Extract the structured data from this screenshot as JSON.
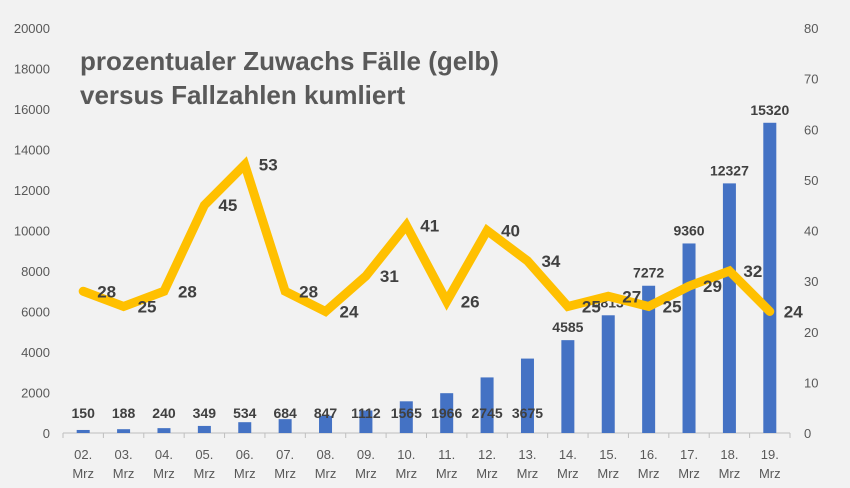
{
  "chart_data": {
    "type": "bar+line",
    "title_lines": [
      "prozentualer Zuwachs Fälle (gelb)",
      "versus Fallzahlen kumliert"
    ],
    "categories": [
      [
        "02.",
        "Mrz"
      ],
      [
        "03.",
        "Mrz"
      ],
      [
        "04.",
        "Mrz"
      ],
      [
        "05.",
        "Mrz"
      ],
      [
        "06.",
        "Mrz"
      ],
      [
        "07.",
        "Mrz"
      ],
      [
        "08.",
        "Mrz"
      ],
      [
        "09.",
        "Mrz"
      ],
      [
        "10.",
        "Mrz"
      ],
      [
        "11.",
        "Mrz"
      ],
      [
        "12.",
        "Mrz"
      ],
      [
        "13.",
        "Mrz"
      ],
      [
        "14.",
        "Mrz"
      ],
      [
        "15.",
        "Mrz"
      ],
      [
        "16.",
        "Mrz"
      ],
      [
        "17.",
        "Mrz"
      ],
      [
        "18.",
        "Mrz"
      ],
      [
        "19.",
        "Mrz"
      ]
    ],
    "bars": {
      "axis": "left",
      "color": "#4472c4",
      "values": [
        150,
        188,
        240,
        349,
        534,
        684,
        847,
        1112,
        1565,
        1966,
        2745,
        3675,
        4585,
        5813,
        7272,
        9360,
        12327,
        15320
      ]
    },
    "line": {
      "axis": "right",
      "color": "#ffc000",
      "values": [
        28,
        25,
        28,
        45,
        53,
        28,
        24,
        31,
        41,
        26,
        40,
        34,
        25,
        27,
        25,
        29,
        32,
        24
      ]
    },
    "y_left": {
      "min": 0,
      "max": 20000,
      "ticks": [
        "0",
        "2000",
        "4000",
        "6000",
        "8000",
        "10000",
        "12000",
        "14000",
        "16000",
        "18000",
        "20000"
      ]
    },
    "y_right": {
      "min": 0,
      "max": 80,
      "ticks": [
        "0",
        "10",
        "20",
        "30",
        "40",
        "50",
        "60",
        "70",
        "80"
      ]
    },
    "grid": false,
    "legend": "none"
  }
}
